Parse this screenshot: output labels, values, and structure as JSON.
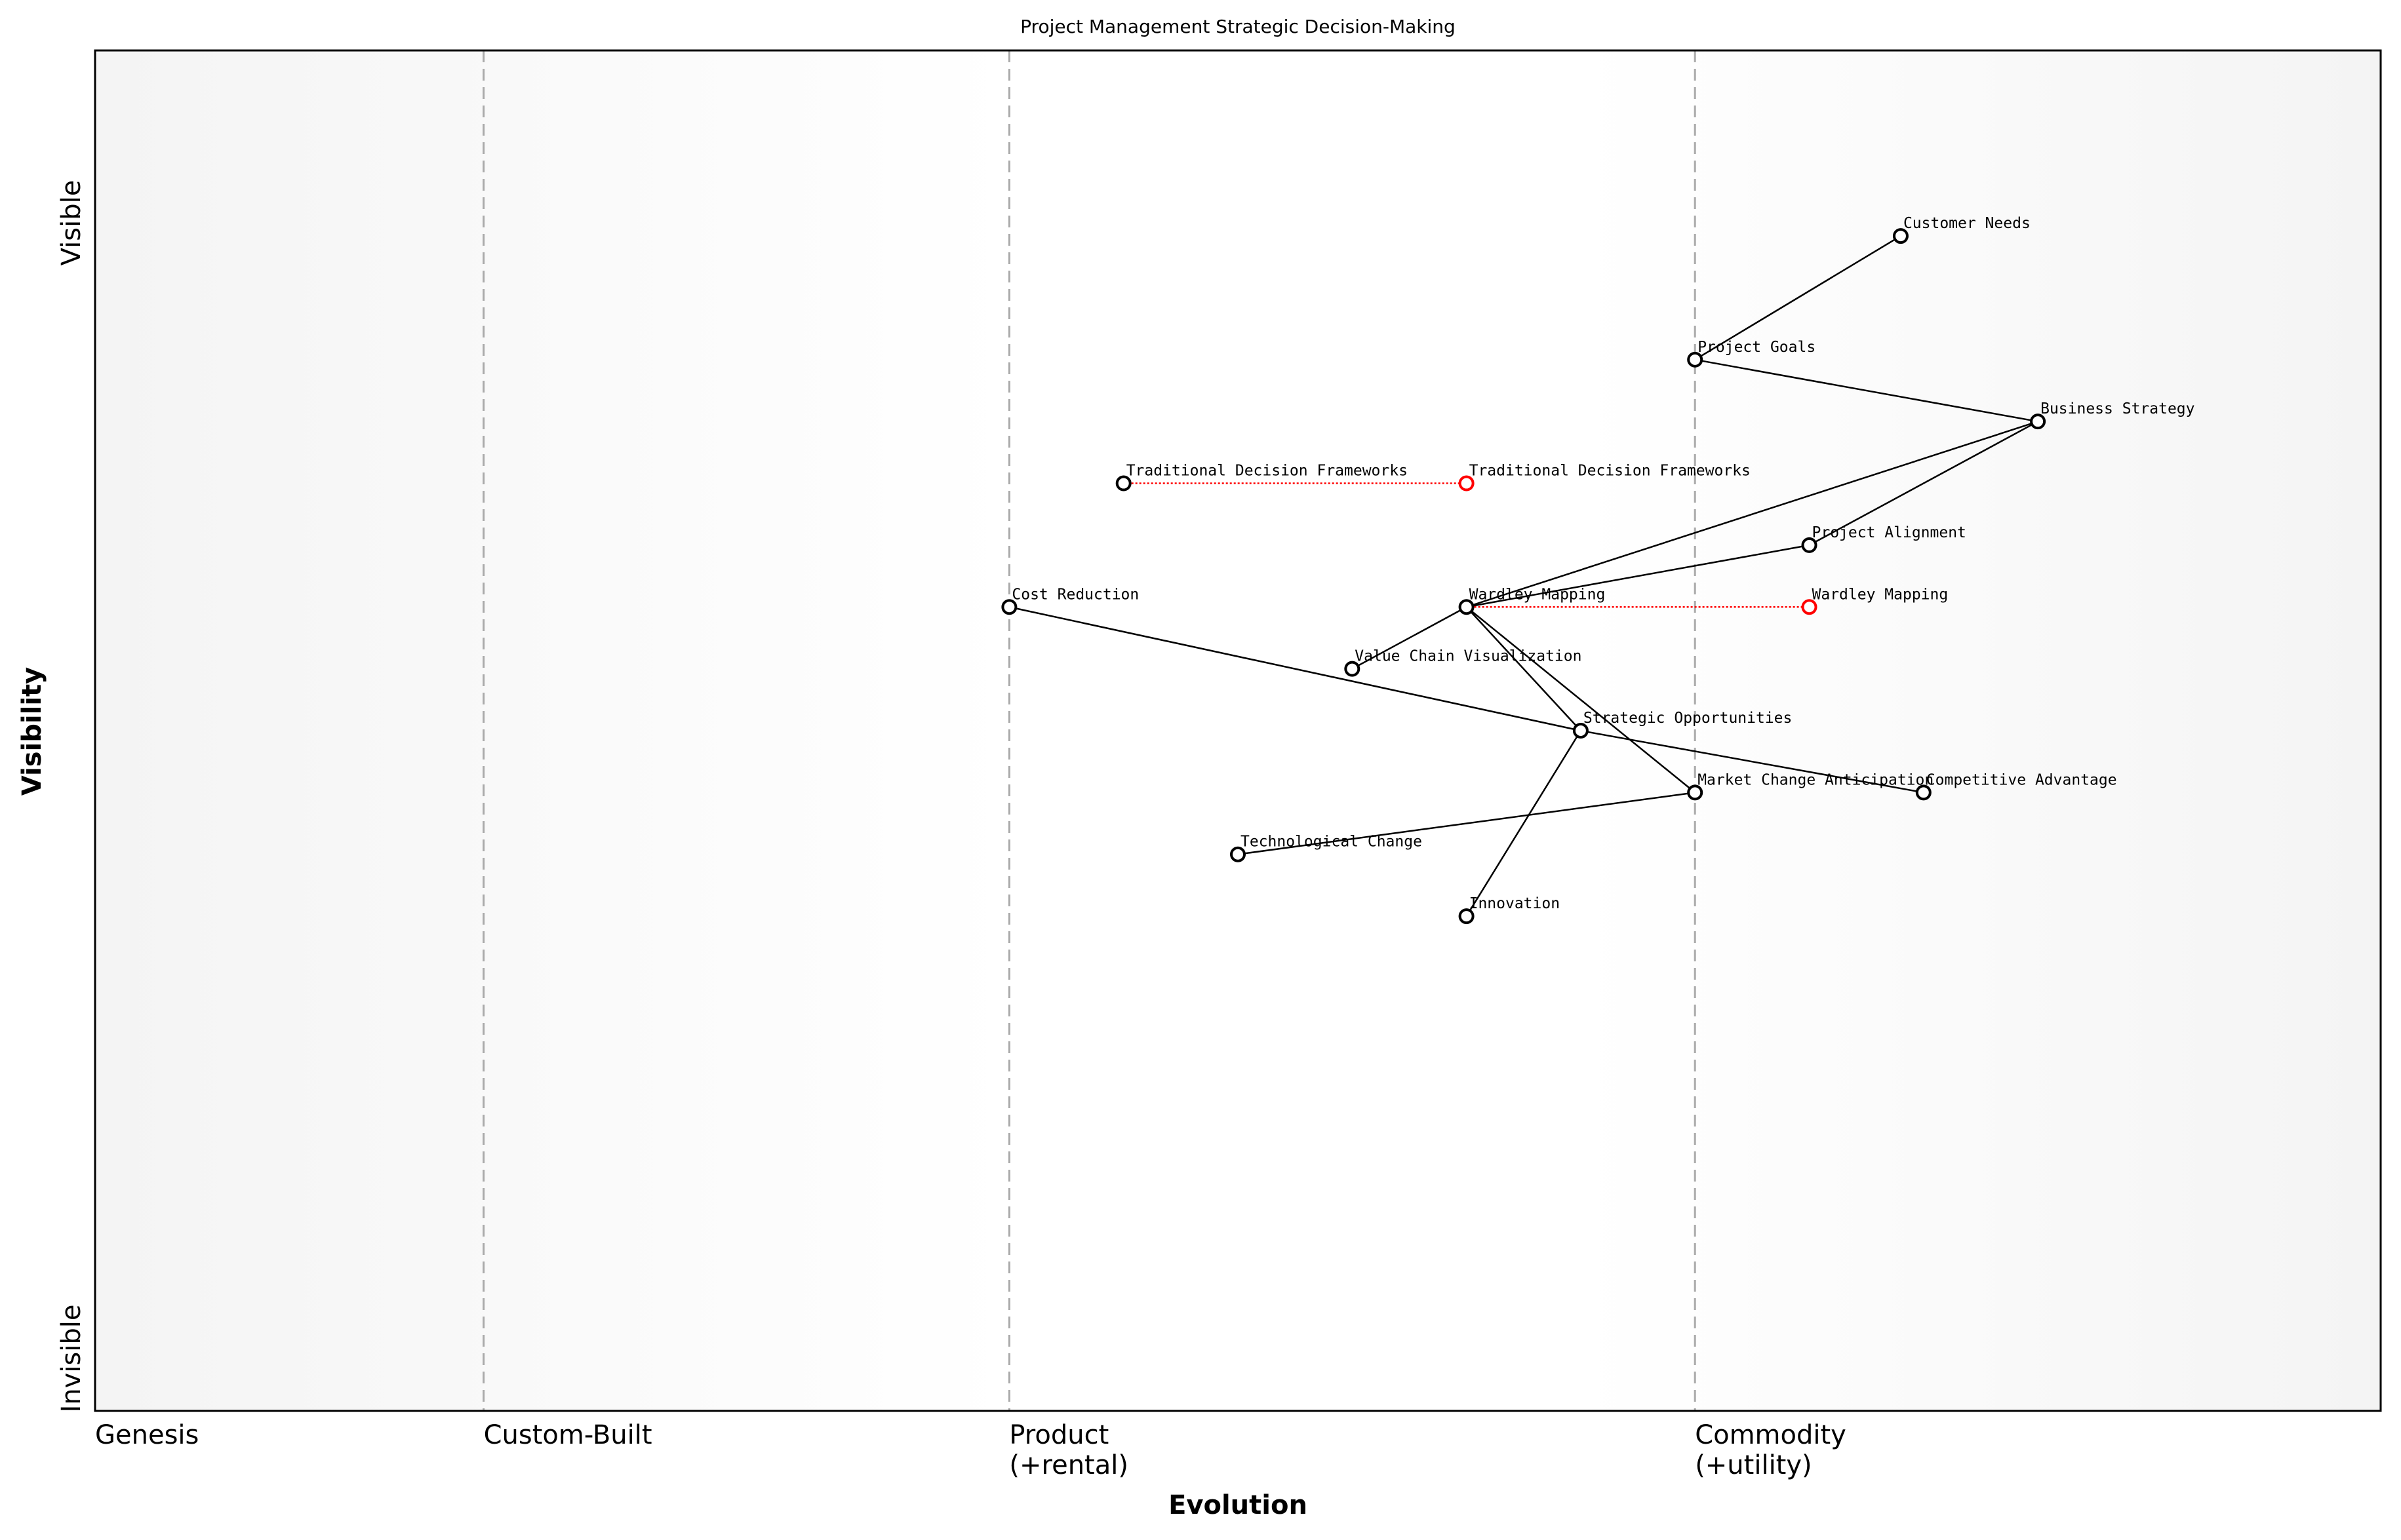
{
  "title": "Project Management Strategic Decision-Making",
  "x_axis": {
    "label": "Evolution",
    "stages": [
      {
        "label": [
          "Genesis"
        ],
        "at": 0.0
      },
      {
        "label": [
          "Custom-Built"
        ],
        "at": 0.17
      },
      {
        "label": [
          "Product",
          "(+rental)"
        ],
        "at": 0.4
      },
      {
        "label": [
          "Commodity",
          "(+utility)"
        ],
        "at": 0.7
      }
    ],
    "range": [
      0,
      1
    ]
  },
  "y_axis": {
    "label": "Visibility",
    "top_label": "Visible",
    "bottom_label": "Invisible",
    "range": [
      0,
      1.1
    ]
  },
  "colors": {
    "node": "#000000",
    "evolved": "#ff0000",
    "edge": "#000000",
    "stage_line": "#aaaaaa"
  },
  "chart_data": {
    "type": "wardley-map",
    "nodes": [
      {
        "name": "Customer Needs",
        "evolution": 0.79,
        "visibility": 0.95
      },
      {
        "name": "Project Goals",
        "evolution": 0.7,
        "visibility": 0.85
      },
      {
        "name": "Business Strategy",
        "evolution": 0.85,
        "visibility": 0.8
      },
      {
        "name": "Traditional Decision Frameworks",
        "evolution": 0.45,
        "visibility": 0.75
      },
      {
        "name": "Project Alignment",
        "evolution": 0.75,
        "visibility": 0.7
      },
      {
        "name": "Cost Reduction",
        "evolution": 0.4,
        "visibility": 0.65
      },
      {
        "name": "Wardley Mapping",
        "evolution": 0.6,
        "visibility": 0.65
      },
      {
        "name": "Value Chain Visualization",
        "evolution": 0.55,
        "visibility": 0.6
      },
      {
        "name": "Strategic Opportunities",
        "evolution": 0.65,
        "visibility": 0.55
      },
      {
        "name": "Market Change Anticipation",
        "evolution": 0.7,
        "visibility": 0.5
      },
      {
        "name": "Competitive Advantage",
        "evolution": 0.8,
        "visibility": 0.5
      },
      {
        "name": "Technological Change",
        "evolution": 0.5,
        "visibility": 0.45
      },
      {
        "name": "Innovation",
        "evolution": 0.6,
        "visibility": 0.4
      }
    ],
    "evolved": [
      {
        "name": "Traditional Decision Frameworks",
        "from": 0.45,
        "to": 0.6,
        "visibility": 0.75
      },
      {
        "name": "Wardley Mapping",
        "from": 0.6,
        "to": 0.75,
        "visibility": 0.65
      }
    ],
    "edges": [
      [
        "Customer Needs",
        "Project Goals"
      ],
      [
        "Project Goals",
        "Business Strategy"
      ],
      [
        "Business Strategy",
        "Wardley Mapping"
      ],
      [
        "Business Strategy",
        "Project Alignment"
      ],
      [
        "Project Alignment",
        "Wardley Mapping"
      ],
      [
        "Wardley Mapping",
        "Value Chain Visualization"
      ],
      [
        "Wardley Mapping",
        "Strategic Opportunities"
      ],
      [
        "Wardley Mapping",
        "Market Change Anticipation"
      ],
      [
        "Cost Reduction",
        "Strategic Opportunities"
      ],
      [
        "Strategic Opportunities",
        "Competitive Advantage"
      ],
      [
        "Market Change Anticipation",
        "Technological Change"
      ],
      [
        "Strategic Opportunities",
        "Innovation"
      ]
    ]
  }
}
